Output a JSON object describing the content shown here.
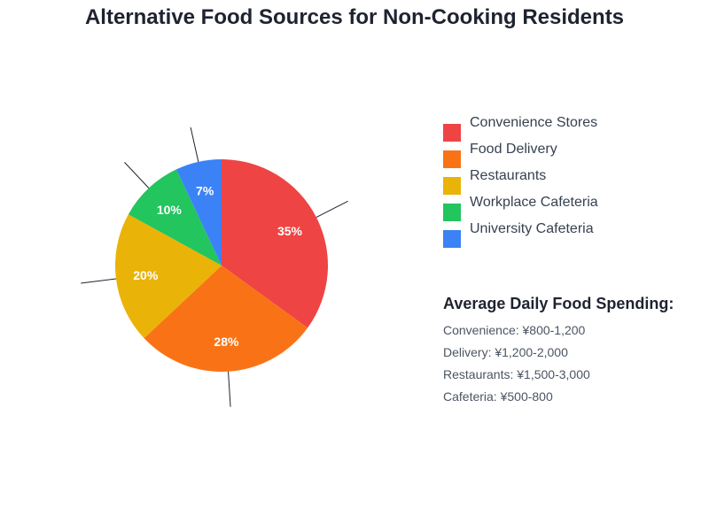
{
  "chart_data": {
    "type": "pie",
    "title": "Alternative Food Sources for Non-Cooking Residents",
    "slices": [
      {
        "label": "Convenience Stores",
        "value": 35,
        "display": "35%",
        "color": "#ef4444"
      },
      {
        "label": "Food Delivery",
        "value": 28,
        "display": "28%",
        "color": "#f97316"
      },
      {
        "label": "Restaurants",
        "value": 20,
        "display": "20%",
        "color": "#eab308"
      },
      {
        "label": "Workplace Cafeteria",
        "value": 10,
        "display": "10%",
        "color": "#22c55e"
      },
      {
        "label": "University Cafeteria",
        "value": 7,
        "display": "7%",
        "color": "#3b82f6"
      }
    ],
    "legend_position": "right"
  },
  "spending": {
    "heading": "Average Daily Food Spending:",
    "items": [
      "Convenience: ¥800-1,200",
      "Delivery: ¥1,200-2,000",
      "Restaurants: ¥1,500-3,000",
      "Cafeteria: ¥500-800"
    ]
  }
}
